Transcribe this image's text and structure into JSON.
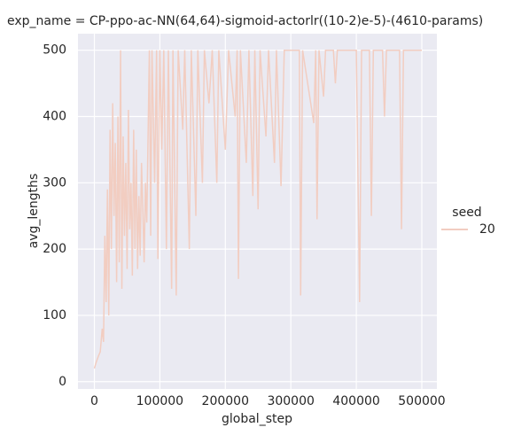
{
  "chart_data": {
    "type": "line",
    "title": "exp_name = CP-ppo-ac-NN(64,64)-sigmoid-actorlr((10-2)e-5)-(4610-params)",
    "x_label": "global_step",
    "y_label": "avg_lengths",
    "legend_title": "seed",
    "x": [
      0,
      3000,
      6000,
      9000,
      12000,
      14000,
      16000,
      18000,
      20000,
      22000,
      24000,
      26000,
      28000,
      30000,
      32000,
      34000,
      36000,
      38000,
      40000,
      42000,
      44000,
      46000,
      48000,
      50000,
      52000,
      54000,
      56000,
      58000,
      60000,
      62000,
      64000,
      66000,
      68000,
      70000,
      72000,
      74000,
      76000,
      78000,
      80000,
      84000,
      86000,
      88000,
      92000,
      95000,
      97000,
      100000,
      103000,
      106000,
      110000,
      113000,
      118000,
      120000,
      125000,
      128000,
      135000,
      138000,
      145000,
      148000,
      155000,
      158000,
      165000,
      168000,
      175000,
      180000,
      187000,
      190000,
      200000,
      205000,
      215000,
      218000,
      220000,
      223000,
      232000,
      236000,
      242000,
      245000,
      250000,
      253000,
      262000,
      266000,
      275000,
      278000,
      285000,
      290000,
      300000,
      313000,
      315000,
      318000,
      335000,
      338000,
      340000,
      343000,
      350000,
      353000,
      365000,
      368000,
      371000,
      400000,
      405000,
      408000,
      420000,
      423000,
      426000,
      440000,
      443000,
      446000,
      466000,
      469000,
      472000,
      500000
    ],
    "series": [
      {
        "name": "20",
        "color": "#f2cdc1",
        "values": [
          20,
          30,
          38,
          45,
          80,
          60,
          220,
          120,
          290,
          100,
          380,
          200,
          420,
          250,
          360,
          150,
          400,
          180,
          500,
          140,
          370,
          220,
          330,
          170,
          410,
          230,
          300,
          160,
          380,
          200,
          350,
          170,
          280,
          190,
          330,
          260,
          180,
          300,
          240,
          500,
          220,
          500,
          300,
          500,
          185,
          500,
          350,
          500,
          200,
          500,
          140,
          500,
          130,
          500,
          380,
          500,
          200,
          500,
          250,
          500,
          300,
          500,
          420,
          500,
          300,
          500,
          350,
          500,
          400,
          500,
          155,
          500,
          330,
          500,
          280,
          500,
          260,
          500,
          370,
          500,
          330,
          500,
          295,
          500,
          500,
          500,
          130,
          500,
          390,
          500,
          245,
          500,
          430,
          500,
          500,
          450,
          500,
          500,
          120,
          500,
          500,
          250,
          500,
          500,
          400,
          500,
          500,
          230,
          500,
          500
        ]
      }
    ],
    "xlim": [
      -25000,
      523000
    ],
    "ylim": [
      -11,
      525
    ],
    "xticks": [
      0,
      100000,
      200000,
      300000,
      400000,
      500000
    ],
    "yticks": [
      0,
      100,
      200,
      300,
      400,
      500
    ],
    "grid": true
  }
}
